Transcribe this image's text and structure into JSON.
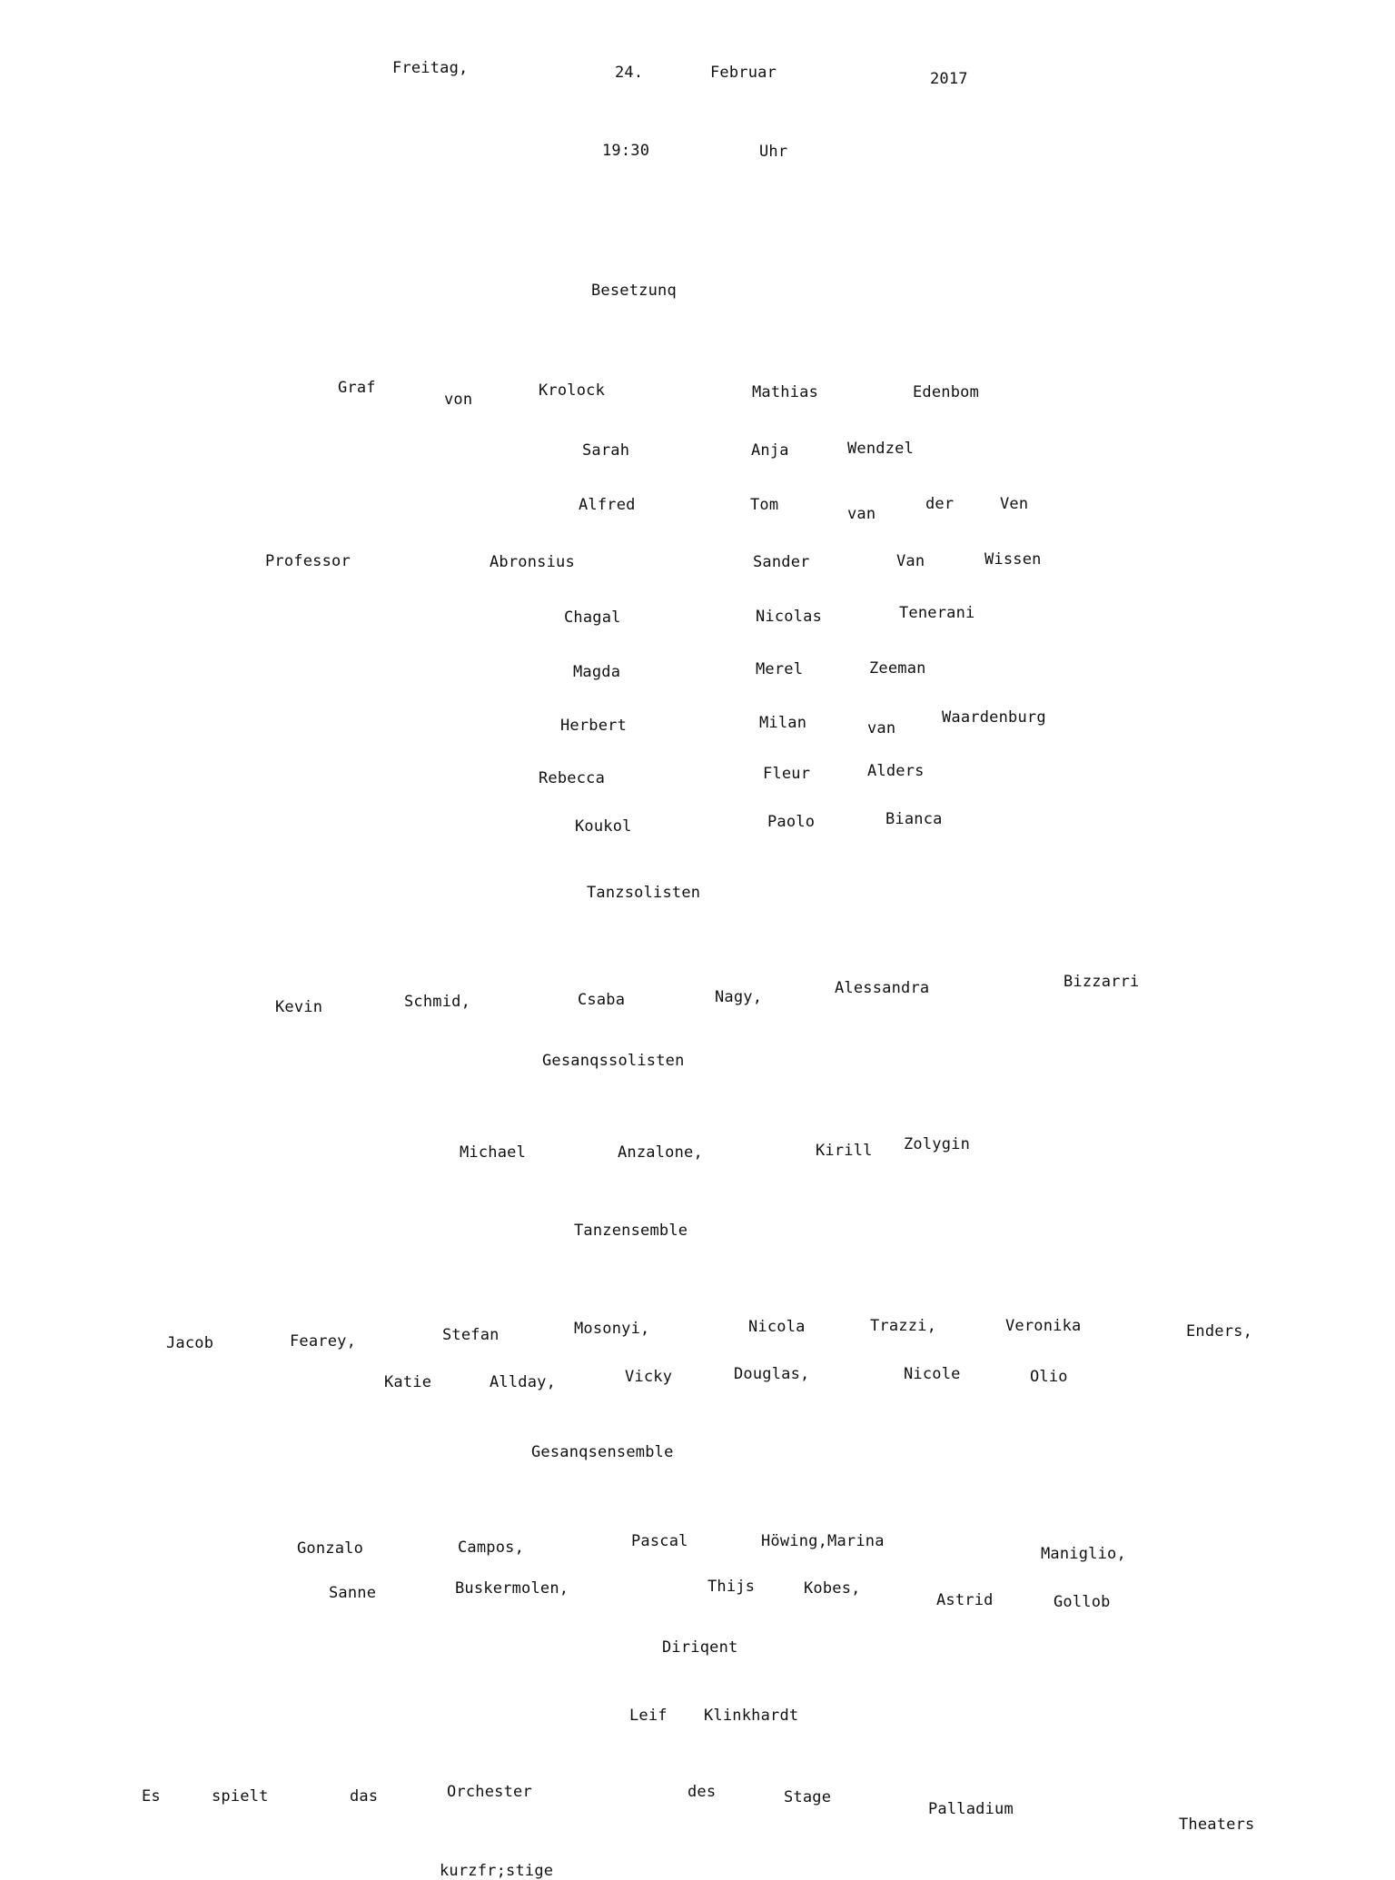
{
  "header": {
    "date": [
      "Freitag,",
      "24.",
      "Februar",
      "2017"
    ],
    "time": [
      "19:30",
      "Uhr"
    ]
  },
  "cast_heading": "Besetzunq",
  "cast": [
    {
      "role": [
        "Graf",
        "von",
        "Krolock"
      ],
      "performer": [
        "Mathias",
        "Edenbom"
      ]
    },
    {
      "role": [
        "Sarah"
      ],
      "performer": [
        "Anja",
        "Wendzel"
      ]
    },
    {
      "role": [
        "Alfred"
      ],
      "performer": [
        "Tom",
        "van",
        "der",
        "Ven"
      ]
    },
    {
      "role": [
        "Professor",
        "Abronsius"
      ],
      "performer": [
        "Sander",
        "Van",
        "Wissen"
      ]
    },
    {
      "role": [
        "Chagal"
      ],
      "performer": [
        "Nicolas",
        "Tenerani"
      ]
    },
    {
      "role": [
        "Magda"
      ],
      "performer": [
        "Merel",
        "Zeeman"
      ]
    },
    {
      "role": [
        "Herbert"
      ],
      "performer": [
        "Milan",
        "van",
        "Waardenburg"
      ]
    },
    {
      "role": [
        "Rebecca"
      ],
      "performer": [
        "Fleur",
        "Alders"
      ]
    },
    {
      "role": [
        "Koukol"
      ],
      "performer": [
        "Paolo",
        "Bianca"
      ]
    }
  ],
  "dance_soloists": {
    "heading": "Tanzsolisten",
    "names": [
      "Kevin",
      "Schmid,",
      "Csaba",
      "Nagy,",
      "Alessandra",
      "Bizzarri"
    ]
  },
  "vocal_soloists": {
    "heading": "Gesanqssolisten",
    "names": [
      "Michael",
      "Anzalone,",
      "Kirill",
      "Zolygin"
    ]
  },
  "dance_ensemble": {
    "heading": "Tanzensemble",
    "line1": [
      "Jacob",
      "Fearey,",
      "Stefan",
      "Mosonyi,",
      "Nicola",
      "Trazzi,",
      "Veronika",
      "Enders,"
    ],
    "line2": [
      "Katie",
      "Allday,",
      "Vicky",
      "Douglas,",
      "Nicole",
      "Olio"
    ]
  },
  "vocal_ensemble": {
    "heading": "Gesanqsensemble",
    "line1": [
      "Gonzalo",
      "Campos,",
      "Pascal",
      "Höwing,Marina",
      "Maniglio,"
    ],
    "line2": [
      "Sanne",
      "Buskermolen,",
      "Thijs",
      "Kobes,",
      "Astrid",
      "Gollob"
    ]
  },
  "conductor": {
    "heading": "Diriqent",
    "names": [
      "Leif",
      "Klinkhardt"
    ]
  },
  "orchestra": {
    "line": [
      "Es",
      "spielt",
      "das",
      "Orchester",
      "des",
      "Stage",
      "Palladium",
      "Theaters"
    ],
    "tail": "kurzfr;stige"
  }
}
